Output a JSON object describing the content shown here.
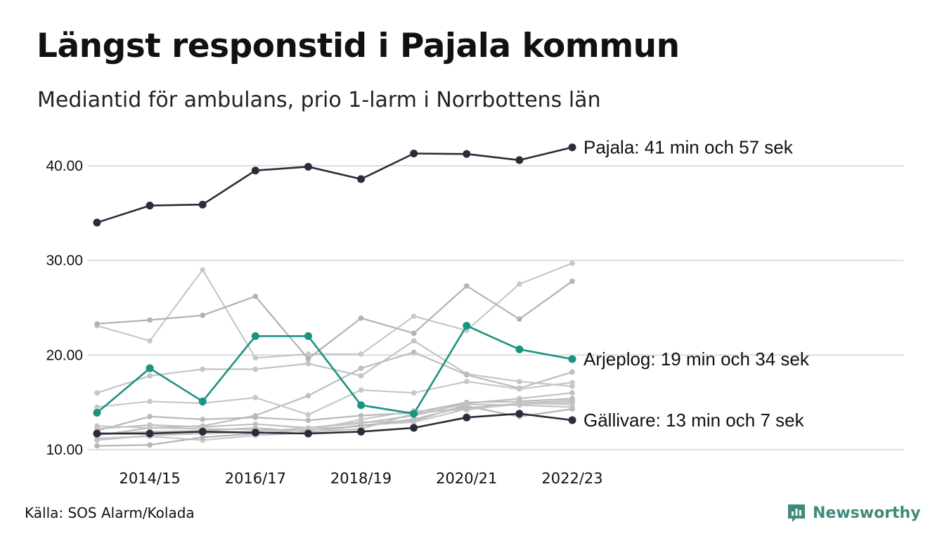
{
  "header": {
    "title": "Längst responstid i Pajala kommun",
    "subtitle": "Mediantid för ambulans, prio 1-larm i Norrbottens län"
  },
  "footer": {
    "source": "Källa: SOS Alarm/Kolada",
    "brand": "Newsworthy",
    "brand_color": "#3f8a7b"
  },
  "chart_data": {
    "type": "line",
    "x": [
      "2013/14",
      "2014/15",
      "2015/16",
      "2016/17",
      "2017/18",
      "2018/19",
      "2019/20",
      "2020/21",
      "2021/22",
      "2022/23"
    ],
    "x_tick_labels": [
      "2014/15",
      "2016/17",
      "2018/19",
      "2020/21",
      "2022/23"
    ],
    "y_tick_labels": [
      "10.00",
      "20.00",
      "30.00",
      "40.00"
    ],
    "ylim": [
      10,
      43
    ],
    "grid": true,
    "colors": {
      "highlight_dark": "#2b2b3b",
      "highlight_teal": "#1a9382",
      "background_lines": [
        "#c8c8c8",
        "#b2b2b2",
        "#c4c4c4",
        "#bdbdbd",
        "#c8c8c8",
        "#b8b8b8",
        "#c0c0c0",
        "#c9c9c9",
        "#b5b5b5",
        "#c6c6c6",
        "#bfbfbf",
        "#c3c3c3"
      ],
      "gridline": "#dddddd"
    },
    "series": [
      {
        "values": [
          23.1,
          21.5,
          29.0,
          19.7,
          20.1,
          20.1,
          24.1,
          22.6,
          27.5,
          29.7
        ],
        "highlight": false
      },
      {
        "values": [
          23.3,
          23.7,
          24.2,
          26.2,
          19.6,
          23.9,
          22.3,
          27.3,
          23.8,
          27.8
        ],
        "highlight": false
      },
      {
        "values": [
          16.0,
          17.8,
          18.5,
          18.5,
          19.1,
          17.8,
          21.5,
          18.0,
          17.2,
          16.7
        ],
        "highlight": false
      },
      {
        "values": [
          11.5,
          12.3,
          12.5,
          13.6,
          15.7,
          18.6,
          20.3,
          17.9,
          16.5,
          18.2
        ],
        "highlight": false
      },
      {
        "values": [
          14.5,
          15.1,
          14.9,
          15.5,
          13.7,
          16.3,
          16.0,
          17.2,
          16.4,
          17.1
        ],
        "highlight": false
      },
      {
        "values": [
          12.0,
          13.5,
          13.2,
          13.4,
          13.1,
          13.6,
          13.9,
          15.0,
          15.1,
          15.4
        ],
        "highlight": false
      },
      {
        "values": [
          12.2,
          12.6,
          12.4,
          12.7,
          12.3,
          12.8,
          13.6,
          14.9,
          15.4,
          16.0
        ],
        "highlight": false
      },
      {
        "values": [
          11.2,
          11.4,
          11.0,
          11.5,
          11.8,
          12.6,
          12.9,
          14.3,
          14.8,
          15.0
        ],
        "highlight": false
      },
      {
        "values": [
          10.4,
          10.5,
          11.3,
          11.7,
          12.1,
          12.5,
          13.2,
          14.6,
          13.5,
          14.3
        ],
        "highlight": false
      },
      {
        "values": [
          12.5,
          12.3,
          12.2,
          12.1,
          12.0,
          13.2,
          14.1,
          14.2,
          14.9,
          14.8
        ],
        "highlight": false
      },
      {
        "values": [
          11.6,
          11.9,
          12.0,
          12.3,
          11.9,
          12.2,
          13.8,
          14.4,
          14.9,
          15.2
        ],
        "highlight": false
      },
      {
        "values": [
          11.0,
          11.5,
          11.7,
          11.9,
          12.3,
          12.9,
          13.0,
          14.8,
          14.7,
          14.5
        ],
        "highlight": false
      },
      {
        "name": "Pajala: 41 min och 57 sek",
        "values": [
          34.0,
          35.8,
          35.9,
          39.5,
          39.9,
          38.6,
          41.3,
          41.25,
          40.6,
          41.95
        ],
        "highlight": "dark"
      },
      {
        "name": "Arjeplog: 19 min och 34 sek",
        "values": [
          13.9,
          18.6,
          15.1,
          22.0,
          22.0,
          14.7,
          13.8,
          23.1,
          20.6,
          19.57
        ],
        "highlight": "teal"
      },
      {
        "name": "Gällivare: 13 min och 7 sek",
        "values": [
          11.7,
          11.7,
          11.9,
          11.8,
          11.7,
          11.9,
          12.3,
          13.4,
          13.8,
          13.12
        ],
        "highlight": "dark"
      }
    ]
  }
}
